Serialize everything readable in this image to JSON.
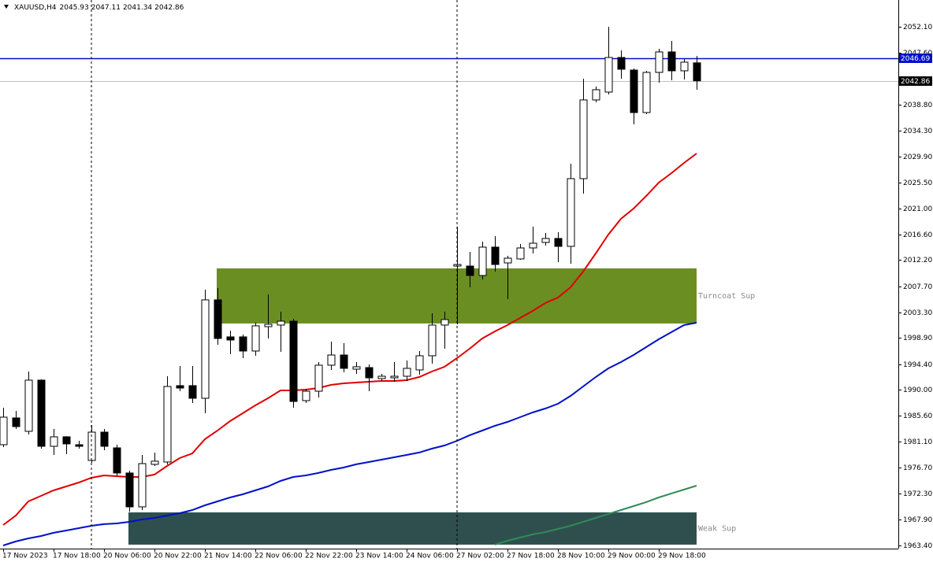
{
  "header": {
    "symbol": "XAUUSD,H4",
    "ohlc": [
      2045.93,
      2047.11,
      2041.34,
      2042.86
    ]
  },
  "chart_data": {
    "type": "candlestick",
    "categories": [
      "17 Nov 2023",
      null,
      null,
      null,
      "17 Nov 18:00",
      null,
      null,
      null,
      "20 Nov 06:00",
      null,
      null,
      null,
      "20 Nov 22:00",
      null,
      null,
      null,
      "21 Nov 14:00",
      null,
      null,
      null,
      "22 Nov 06:00",
      null,
      null,
      null,
      "22 Nov 22:00",
      null,
      null,
      null,
      "23 Nov 14:00",
      null,
      null,
      null,
      "24 Nov 06:00",
      null,
      null,
      null,
      "27 Nov 02:00",
      null,
      null,
      null,
      "27 Nov 18:00",
      null,
      null,
      null,
      "28 Nov 10:00",
      null,
      null,
      null,
      "29 Nov 00:00",
      null,
      null,
      null,
      "29 Nov 18:00",
      null,
      null,
      null
    ],
    "open": [
      1980.63,
      1985.21,
      1982.92,
      1991.67,
      1980.36,
      1981.98,
      1980.63,
      1977.94,
      1982.78,
      1980.09,
      1975.79,
      1970.0,
      1977.27,
      1977.67,
      1990.73,
      1990.73,
      1988.57,
      2005.4,
      1999.07,
      1999.07,
      1996.65,
      2000.82,
      2001.09,
      2001.76,
      1988.17,
      1989.78,
      1994.23,
      1995.97,
      1993.55,
      1993.82,
      1991.94,
      1992.07,
      1992.34,
      1993.42,
      1995.84,
      2001.09,
      2011.18,
      2011.18,
      2009.57,
      2014.42,
      2011.72,
      2012.4,
      2014.28,
      2015.22,
      2015.9,
      2014.55,
      2026.13,
      2039.59,
      2040.93,
      2046.85,
      2044.7,
      2037.43,
      2044.3,
      2047.8,
      2044.57,
      2045.93
    ],
    "high": [
      1986.96,
      1986.42,
      1993.15,
      1991.8,
      1983.32,
      1982.1,
      1981.3,
      1983.99,
      1983.32,
      1980.63,
      1976.19,
      1978.88,
      1979.29,
      1992.34,
      1994.09,
      1994.09,
      2007.15,
      2007.42,
      2000.15,
      1999.47,
      2001.49,
      2006.34,
      2003.38,
      2002.17,
      1990.19,
      1994.76,
      1998.26,
      1997.99,
      1994.76,
      1994.36,
      1992.75,
      1994.76,
      1995.03,
      1996.65,
      2003.11,
      2003.38,
      2017.92,
      2013.61,
      2015.36,
      2016.3,
      2012.93,
      2014.95,
      2017.92,
      2016.84,
      2016.97,
      2028.68,
      2043.22,
      2041.87,
      2052.1,
      2048.07,
      2044.97,
      2044.57,
      2048.33,
      2049.68,
      2046.59,
      2047.11
    ],
    "low": [
      1980.23,
      1983.32,
      1982.38,
      1979.96,
      1978.88,
      1979.02,
      1979.96,
      1977.54,
      1979.69,
      1975.38,
      1969.19,
      1969.46,
      1977.0,
      1977.27,
      1989.78,
      1987.76,
      1986.01,
      1997.72,
      1996.11,
      1995.44,
      1995.84,
      1998.8,
      1996.51,
      1986.96,
      1987.76,
      1988.71,
      1993.42,
      1993.01,
      1992.75,
      1989.78,
      1991.53,
      1991.4,
      1991.53,
      1992.61,
      1994.49,
      1997.05,
      2001.22,
      2007.55,
      2008.9,
      2010.24,
      2005.53,
      2012.26,
      2013.34,
      2014.68,
      2011.86,
      2011.59,
      2023.57,
      2039.18,
      2040.53,
      2043.22,
      2035.41,
      2037.16,
      2042.55,
      2042.95,
      2043.09,
      2041.34
    ],
    "close": [
      1985.34,
      1983.73,
      1991.67,
      1980.36,
      1981.98,
      1980.77,
      1980.36,
      1982.78,
      1980.36,
      1975.79,
      1970.0,
      1977.4,
      1977.81,
      1990.59,
      1990.32,
      1988.57,
      2005.4,
      1998.8,
      1998.53,
      1996.65,
      2000.96,
      2001.22,
      2001.76,
      1988.03,
      1989.78,
      1994.23,
      1995.97,
      1993.69,
      1993.96,
      1992.07,
      1992.34,
      1992.34,
      1993.69,
      1995.84,
      2001.09,
      2002.03,
      2011.45,
      2009.57,
      2014.42,
      2011.45,
      2012.53,
      2014.28,
      2015.09,
      2015.9,
      2014.55,
      2026.13,
      2039.59,
      2041.34,
      2046.85,
      2044.84,
      2037.43,
      2044.3,
      2047.8,
      2044.57,
      2046.05,
      2042.86
    ],
    "lines": [
      {
        "color": "#e00000",
        "values": [
          1966.9,
          1968.52,
          1970.94,
          1971.88,
          1972.82,
          1973.5,
          1974.17,
          1974.98,
          1975.38,
          1975.25,
          1975.11,
          1975.11,
          1975.52,
          1977.0,
          1978.34,
          1979.15,
          1981.57,
          1983.05,
          1984.67,
          1986.01,
          1987.36,
          1988.57,
          1989.92,
          1989.92,
          1990.05,
          1990.32,
          1990.86,
          1991.13,
          1991.26,
          1991.4,
          1991.53,
          1991.53,
          1991.67,
          1992.21,
          1993.15,
          1993.96,
          1995.44,
          1997.05,
          1998.8,
          2000.01,
          2001.09,
          2002.3,
          2003.51,
          2004.86,
          2005.8,
          2007.55,
          2010.24,
          2013.34,
          2016.57,
          2019.26,
          2021.01,
          2023.16,
          2025.45,
          2027.07,
          2028.82,
          2030.43
        ]
      },
      {
        "color": "#0010c8",
        "values": [
          1963.4,
          1964.08,
          1964.61,
          1965.02,
          1965.56,
          1965.96,
          1966.36,
          1966.77,
          1967.04,
          1967.17,
          1967.44,
          1967.84,
          1968.11,
          1968.52,
          1968.92,
          1969.46,
          1970.27,
          1970.94,
          1971.61,
          1972.15,
          1972.82,
          1973.5,
          1974.44,
          1975.11,
          1975.38,
          1975.79,
          1976.32,
          1976.73,
          1977.27,
          1977.67,
          1978.07,
          1978.48,
          1978.88,
          1979.29,
          1979.96,
          1980.5,
          1981.3,
          1982.25,
          1983.05,
          1983.86,
          1984.53,
          1985.34,
          1986.15,
          1986.82,
          1987.63,
          1988.98,
          1990.59,
          1992.21,
          1993.69,
          1994.76,
          1995.97,
          1997.32,
          1998.67,
          1999.88,
          2001.09,
          2001.49
        ]
      },
      {
        "color": "#2e8b57",
        "values": [
          null,
          null,
          null,
          null,
          null,
          null,
          null,
          null,
          null,
          null,
          null,
          null,
          null,
          null,
          null,
          null,
          null,
          null,
          null,
          null,
          null,
          null,
          null,
          null,
          null,
          null,
          null,
          null,
          null,
          null,
          null,
          null,
          null,
          null,
          null,
          null,
          null,
          null,
          null,
          1963.54,
          1964.21,
          1964.75,
          1965.29,
          1965.69,
          1966.23,
          1966.77,
          1967.44,
          1968.11,
          1968.79,
          1969.46,
          1970.13,
          1970.81,
          1971.61,
          1972.29,
          1972.96,
          1973.63
        ]
      }
    ],
    "zones": [
      {
        "label": "Turncoat Sup",
        "top": 2010.78,
        "bottom": 2001.36,
        "color": "#6b8e23"
      },
      {
        "label": "Weak Sup",
        "top": 1969.06,
        "bottom": 1963.54,
        "color": "#2f4f4f"
      }
    ],
    "hlines": [
      {
        "value": 2046.69,
        "color": "#0010c8"
      },
      {
        "value": 2042.86,
        "color": "#c0c0c0"
      }
    ],
    "ylim": [
      1962.86,
      2056.68
    ],
    "yticks": [
      {
        "value": 2052.1,
        "label": "2052.10"
      },
      {
        "value": 2047.6,
        "label": "2047.60"
      },
      {
        "value": 2038.8,
        "label": "2038.80"
      },
      {
        "value": 2034.3,
        "label": "2034.30"
      },
      {
        "value": 2029.9,
        "label": "2029.90"
      },
      {
        "value": 2025.5,
        "label": "2025.50"
      },
      {
        "value": 2021.0,
        "label": "2021.00"
      },
      {
        "value": 2016.6,
        "label": "2016.60"
      },
      {
        "value": 2012.2,
        "label": "2012.20"
      },
      {
        "value": 2007.7,
        "label": "2007.70"
      },
      {
        "value": 2003.3,
        "label": "2003.30"
      },
      {
        "value": 1998.9,
        "label": "1998.90"
      },
      {
        "value": 1994.4,
        "label": "1994.40"
      },
      {
        "value": 1990.0,
        "label": "1990.00"
      },
      {
        "value": 1985.6,
        "label": "1985.60"
      },
      {
        "value": 1981.1,
        "label": "1981.10"
      },
      {
        "value": 1976.7,
        "label": "1976.70"
      },
      {
        "value": 1972.3,
        "label": "1972.30"
      },
      {
        "value": 1967.9,
        "label": "1967.90"
      },
      {
        "value": 1963.4,
        "label": "1963.40"
      }
    ]
  }
}
